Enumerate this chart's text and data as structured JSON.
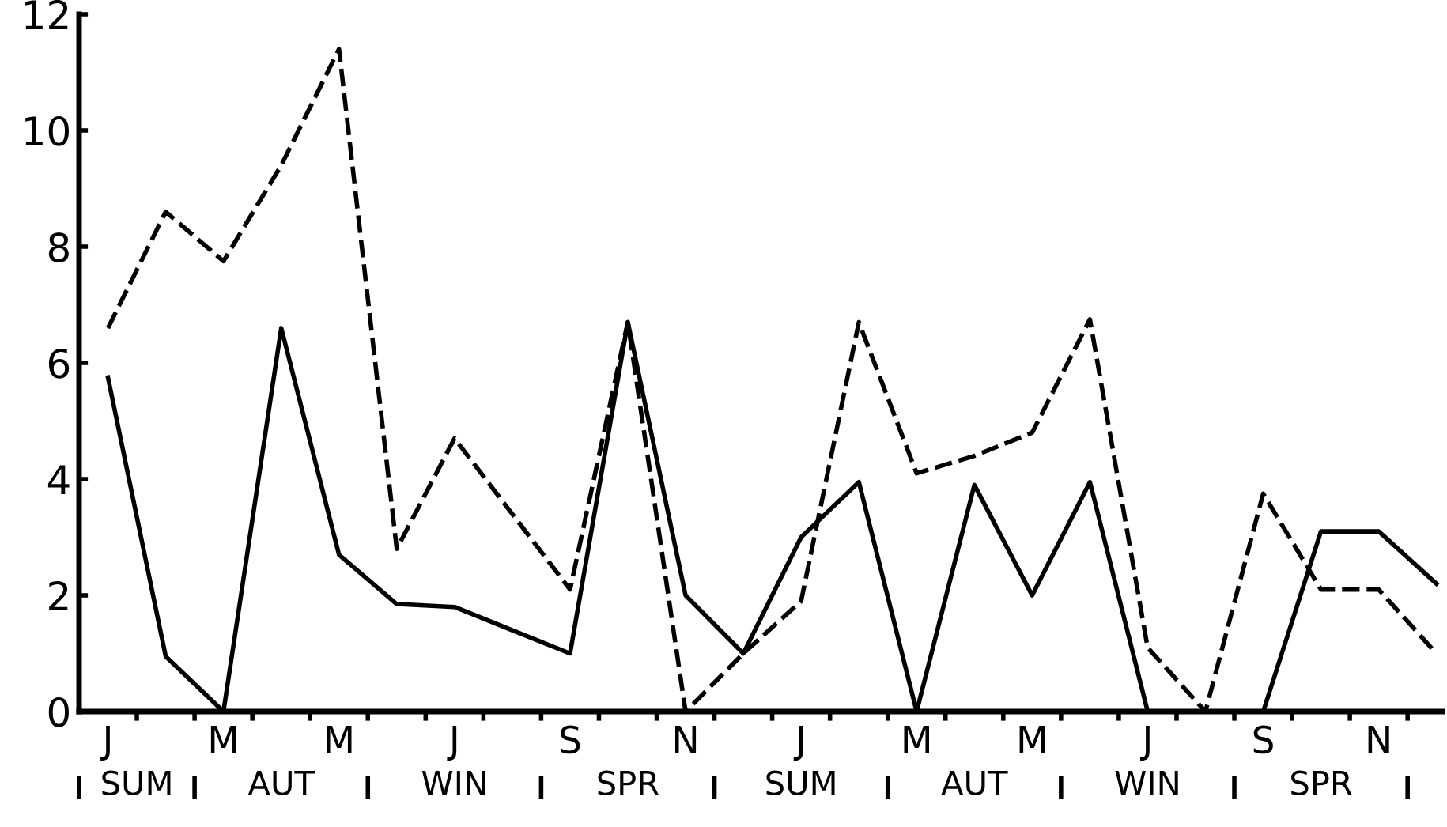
{
  "chart_data": {
    "type": "line",
    "categories": [
      "J",
      null,
      "M",
      null,
      "M",
      null,
      "J",
      null,
      "S",
      null,
      "N",
      null,
      "J",
      null,
      "M",
      null,
      "M",
      null,
      "J",
      null,
      "S",
      null,
      "N",
      null
    ],
    "series": [
      {
        "color": "#000000",
        "line_style": "dashed",
        "values": [
          6.6,
          8.6,
          7.75,
          9.4,
          11.4,
          2.8,
          4.7,
          3.4,
          2.1,
          6.7,
          0,
          1.0,
          1.9,
          6.7,
          4.1,
          4.4,
          4.8,
          6.75,
          1.1,
          0,
          3.75,
          2.1,
          2.1,
          1.0
        ]
      },
      {
        "color": "#000000",
        "line_style": "solid",
        "values": [
          5.75,
          0.95,
          0,
          6.6,
          2.7,
          1.85,
          1.8,
          1.4,
          1.0,
          6.7,
          2.0,
          1.0,
          3.0,
          3.95,
          0,
          3.9,
          2.0,
          3.95,
          0,
          0,
          0,
          3.1,
          3.1,
          2.2
        ]
      }
    ],
    "ylim": [
      0,
      12
    ],
    "yticks": [
      0,
      2,
      4,
      6,
      8,
      10,
      12
    ],
    "grid": false,
    "legend": false,
    "marker": "none",
    "annotations": [
      "SUM",
      "AUT",
      "WIN",
      "SPR",
      "SUM",
      "AUT",
      "WIN",
      "SPR"
    ]
  }
}
